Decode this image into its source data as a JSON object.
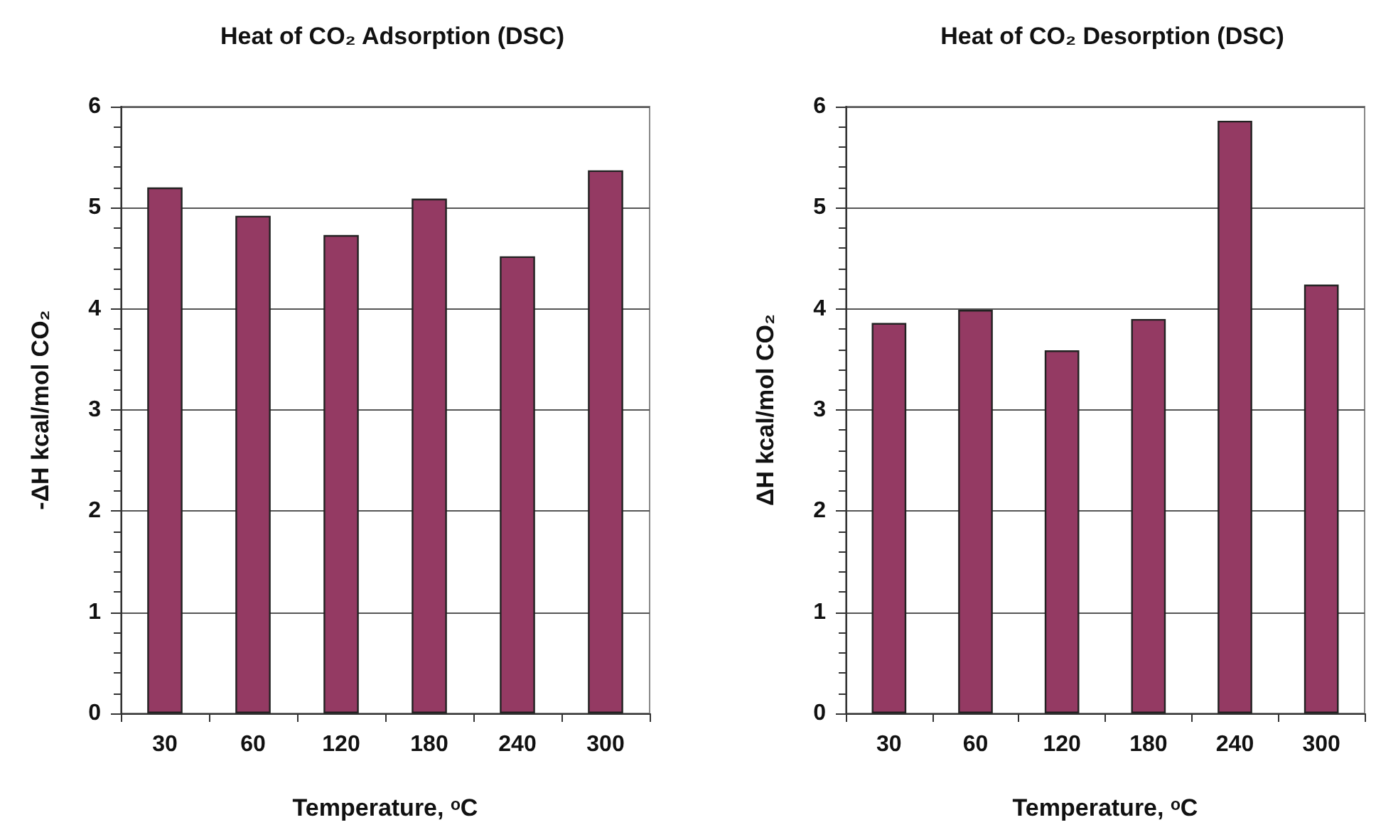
{
  "chart_data": [
    {
      "type": "bar",
      "title": "Heat of CO₂ Adsorption (DSC)",
      "xlabel": "Temperature, ᵒC",
      "ylabel": "-ΔH kcal/mol CO₂",
      "categories": [
        "30",
        "60",
        "120",
        "180",
        "240",
        "300"
      ],
      "values": [
        5.2,
        4.92,
        4.73,
        5.09,
        4.52,
        5.37
      ],
      "color": "#943a63",
      "ylim": [
        0,
        6
      ],
      "yticks": [
        0,
        1,
        2,
        3,
        4,
        5,
        6
      ],
      "grid": "y"
    },
    {
      "type": "bar",
      "title": "Heat of CO₂ Desorption (DSC)",
      "xlabel": "Temperature, ᵒC",
      "ylabel": "ΔH kcal/mol CO₂",
      "categories": [
        "30",
        "60",
        "120",
        "180",
        "240",
        "300"
      ],
      "values": [
        3.86,
        3.99,
        3.59,
        3.9,
        5.86,
        4.24
      ],
      "color": "#943a63",
      "ylim": [
        0,
        6
      ],
      "yticks": [
        0,
        1,
        2,
        3,
        4,
        5,
        6
      ],
      "grid": "y"
    }
  ]
}
